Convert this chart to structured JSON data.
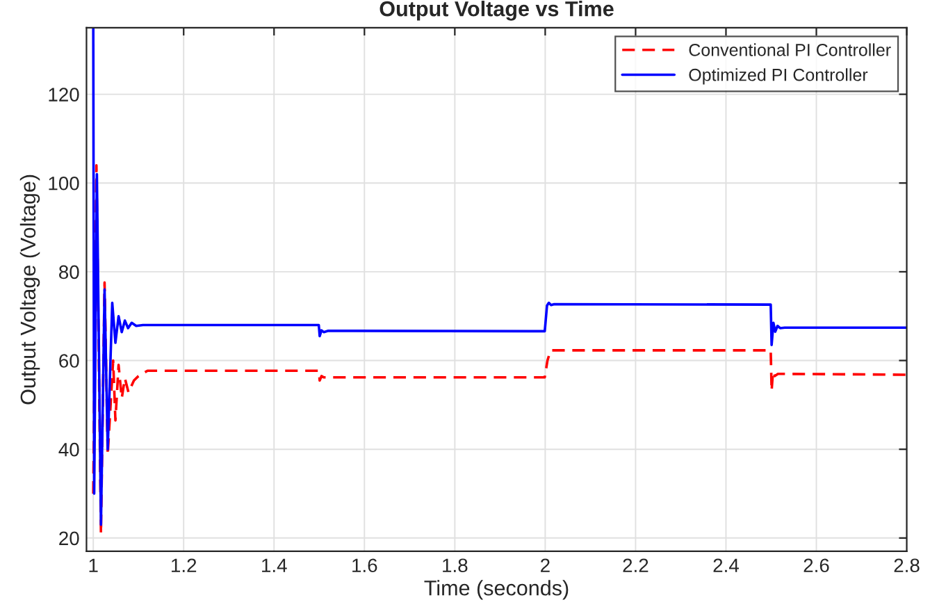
{
  "chart_data": {
    "type": "line",
    "title": "Output Voltage vs Time",
    "xlabel": "Time (seconds)",
    "ylabel": "Output Voltage (Voltage)",
    "xlim": [
      0.985,
      2.8
    ],
    "xticks": [
      {
        "value": 1,
        "label": "1"
      },
      1.2,
      1.4,
      1.6,
      1.8,
      {
        "value": 2,
        "label": "2"
      },
      2.2,
      2.4,
      2.6,
      2.8
    ],
    "ylim": [
      17,
      135
    ],
    "yticks": [
      20,
      40,
      60,
      80,
      100,
      120
    ],
    "grid": true,
    "legend": "top right",
    "series": [
      {
        "name": "Conventional PI Controller",
        "color": "#ff0000",
        "line_style": "dashed",
        "x": [
          1.0,
          1.007,
          1.017,
          1.025,
          1.032,
          1.044,
          1.049,
          1.056,
          1.063,
          1.07,
          1.078,
          1.09,
          1.1,
          1.12,
          1.499,
          1.501,
          1.505,
          1.51,
          1.999,
          2.005,
          2.012,
          2.499,
          2.501,
          2.504,
          2.508,
          2.515,
          2.8
        ],
        "values": [
          30,
          104,
          21,
          77.6,
          38.7,
          60,
          46.5,
          59,
          51.5,
          56,
          52.8,
          55.5,
          56.5,
          57.7,
          57.7,
          55.5,
          56.5,
          56.2,
          56.2,
          60,
          62.3,
          62.3,
          53.2,
          57.5,
          56.5,
          57,
          56.8
        ]
      },
      {
        "name": "Optimized PI Controller",
        "color": "#0000ff",
        "line_style": "solid",
        "x": [
          1.0,
          1.002,
          1.008,
          1.017,
          1.025,
          1.032,
          1.042,
          1.049,
          1.056,
          1.063,
          1.07,
          1.077,
          1.085,
          1.095,
          1.11,
          1.499,
          1.501,
          1.505,
          1.51,
          1.52,
          1.999,
          2.004,
          2.008,
          2.013,
          2.02,
          2.499,
          2.501,
          2.505,
          2.509,
          2.514,
          2.52,
          2.53,
          2.8
        ],
        "values": [
          135,
          30,
          102,
          23,
          76,
          40,
          73,
          64,
          70,
          66.4,
          69,
          67.3,
          68.5,
          67.8,
          68,
          68,
          65.5,
          66.8,
          66.4,
          66.7,
          66.6,
          72.4,
          73,
          72.5,
          72.7,
          72.6,
          63.5,
          68.5,
          66.5,
          67.8,
          67.3,
          67.4,
          67.4
        ]
      }
    ]
  }
}
